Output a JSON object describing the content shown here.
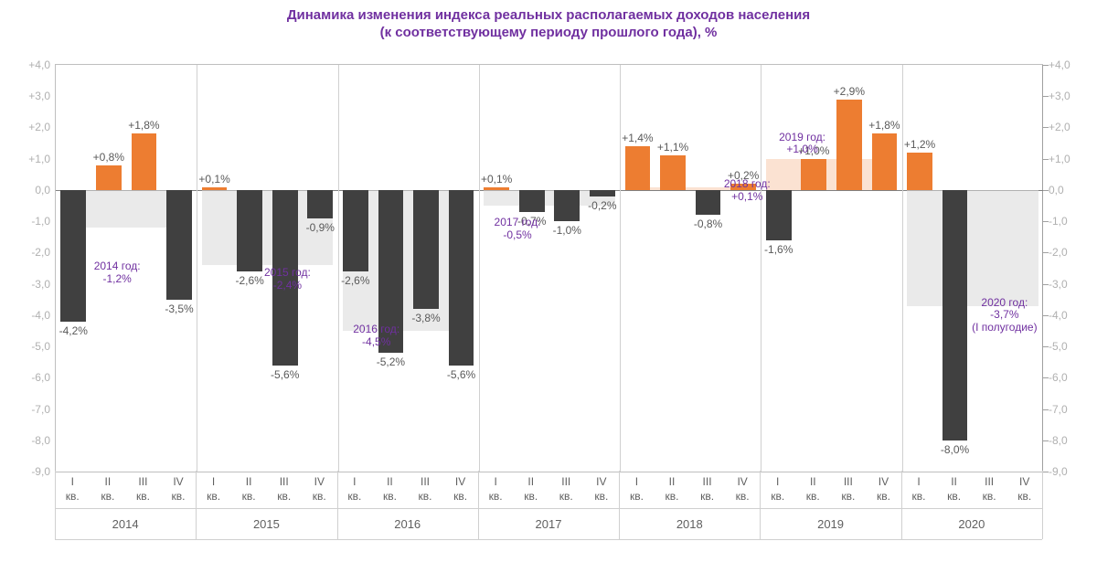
{
  "title_line1": "Динамика изменения индекса реальных располагаемых доходов населения",
  "title_line2": "(к соответствующему периоду прошлого года), %",
  "title_color": "#7030a0",
  "title_fontsize": 15,
  "chart": {
    "ylim": [
      -9,
      4
    ],
    "yticks": [
      -9,
      -8,
      -7,
      -6,
      -5,
      -4,
      -3,
      -2,
      -1,
      0,
      1,
      2,
      3,
      4
    ],
    "tick_color": "#b0b0b0",
    "tick_fontsize": 12,
    "background": "#ffffff",
    "border_color": "#bfbfbf",
    "pos_bar_color": "#ed7d31",
    "neg_bar_color": "#404040",
    "year_overlay_pos_color": "#f8cbad",
    "year_overlay_neg_color": "#d9d9d9",
    "overlay_opacity": 0.55,
    "bar_label_color": "#595959",
    "year_label_color": "#7030a0",
    "years": [
      {
        "year": "2014",
        "avg": -1.2,
        "show_label": true
      },
      {
        "year": "2015",
        "avg": -2.4,
        "show_label": true
      },
      {
        "year": "2016",
        "avg": -4.5,
        "show_label": true
      },
      {
        "year": "2017",
        "avg": -0.5,
        "show_label": true
      },
      {
        "year": "2018",
        "avg": 0.1,
        "show_label": true
      },
      {
        "year": "2019",
        "avg": 1.0,
        "show_label": true
      },
      {
        "year": "2020",
        "avg": -3.7,
        "show_label": true,
        "extra": "(I полугодие)"
      }
    ],
    "quarters": [
      "I",
      "II",
      "III",
      "IV"
    ],
    "quarter_suffix": "кв.",
    "bars": [
      {
        "y": 2014,
        "q": 1,
        "v": -4.2
      },
      {
        "y": 2014,
        "q": 2,
        "v": 0.8
      },
      {
        "y": 2014,
        "q": 3,
        "v": 1.8
      },
      {
        "y": 2014,
        "q": 4,
        "v": -3.5
      },
      {
        "y": 2015,
        "q": 1,
        "v": 0.1
      },
      {
        "y": 2015,
        "q": 2,
        "v": -2.6
      },
      {
        "y": 2015,
        "q": 3,
        "v": -5.6
      },
      {
        "y": 2015,
        "q": 4,
        "v": -0.9
      },
      {
        "y": 2016,
        "q": 1,
        "v": -2.6
      },
      {
        "y": 2016,
        "q": 2,
        "v": -5.2
      },
      {
        "y": 2016,
        "q": 3,
        "v": -3.8
      },
      {
        "y": 2016,
        "q": 4,
        "v": -5.6
      },
      {
        "y": 2017,
        "q": 1,
        "v": 0.1
      },
      {
        "y": 2017,
        "q": 2,
        "v": -0.7
      },
      {
        "y": 2017,
        "q": 3,
        "v": -1.0
      },
      {
        "y": 2017,
        "q": 4,
        "v": -0.2
      },
      {
        "y": 2018,
        "q": 1,
        "v": 1.4
      },
      {
        "y": 2018,
        "q": 2,
        "v": 1.1
      },
      {
        "y": 2018,
        "q": 3,
        "v": -0.8
      },
      {
        "y": 2018,
        "q": 4,
        "v": 0.2
      },
      {
        "y": 2019,
        "q": 1,
        "v": -1.6
      },
      {
        "y": 2019,
        "q": 2,
        "v": 1.0
      },
      {
        "y": 2019,
        "q": 3,
        "v": 2.9
      },
      {
        "y": 2019,
        "q": 4,
        "v": 1.8
      },
      {
        "y": 2020,
        "q": 1,
        "v": 1.2
      },
      {
        "y": 2020,
        "q": 2,
        "v": -8.0
      },
      {
        "y": 2020,
        "q": 3,
        "v": null
      },
      {
        "y": 2020,
        "q": 4,
        "v": null
      }
    ]
  }
}
